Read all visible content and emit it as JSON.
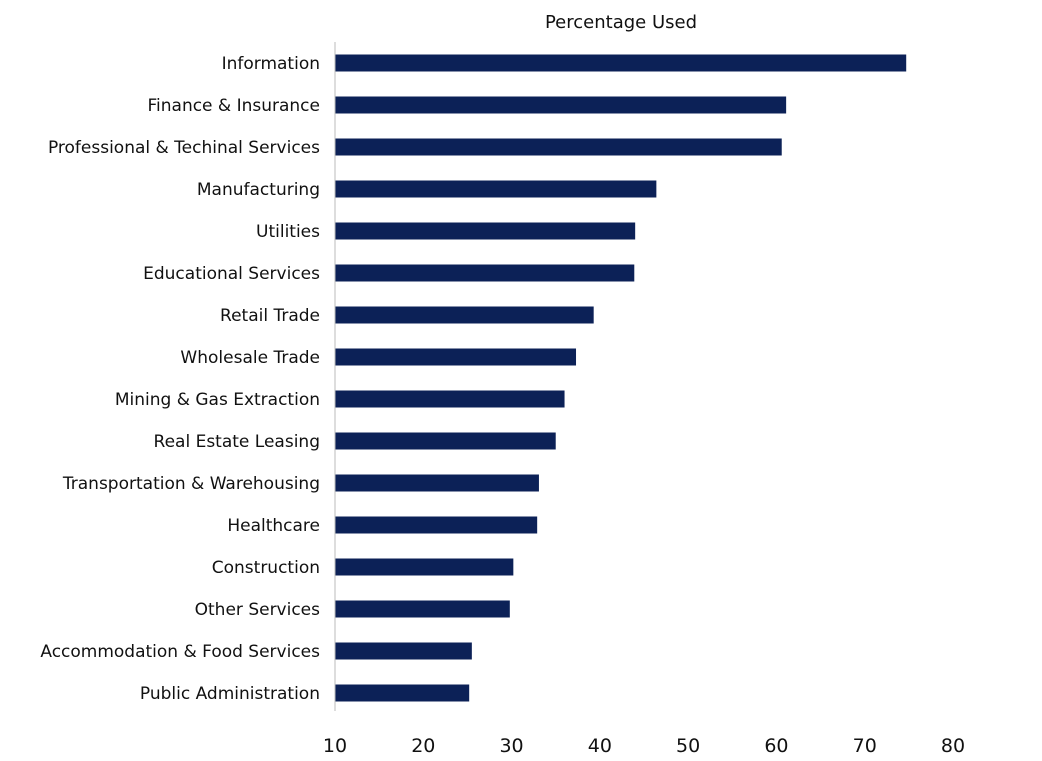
{
  "chart_data": {
    "type": "bar",
    "orientation": "horizontal",
    "title": "Percentage Used",
    "xlabel": "",
    "ylabel": "",
    "xlim": [
      10,
      80
    ],
    "xticks": [
      "10",
      "20",
      "30",
      "40",
      "50",
      "60",
      "70",
      "80"
    ],
    "grid": false,
    "bar_color": "#0c2157",
    "categories": [
      "Information",
      "Finance & Insurance",
      "Professional & Techinal Services",
      "Manufacturing",
      "Utilities",
      "Educational Services",
      "Retail Trade",
      "Wholesale Trade",
      "Mining & Gas Extraction",
      "Real Estate Leasing",
      "Transportation & Warehousing",
      "Healthcare",
      "Construction",
      "Other Services",
      "Accommodation & Food Services",
      "Public Administration"
    ],
    "values": [
      74.7,
      61.1,
      60.6,
      46.4,
      44.0,
      43.9,
      39.3,
      37.3,
      36.0,
      35.0,
      33.1,
      32.9,
      30.2,
      29.8,
      25.5,
      25.2
    ]
  }
}
